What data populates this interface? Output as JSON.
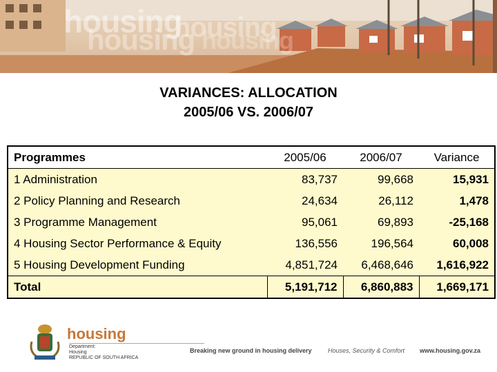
{
  "banner": {
    "words": [
      "housing",
      "housing",
      "housing",
      "housing"
    ]
  },
  "title": {
    "line1": "VARIANCES: ALLOCATION",
    "line2": "2005/06 VS. 2006/07"
  },
  "table": {
    "headers": [
      "Programmes",
      "2005/06",
      "2006/07",
      "Variance"
    ],
    "rows": [
      {
        "programme": "1 Administration",
        "y2005": "83,737",
        "y2006": "99,668",
        "variance": "15,931"
      },
      {
        "programme": "2 Policy Planning and Research",
        "y2005": "24,634",
        "y2006": "26,112",
        "variance": "1,478"
      },
      {
        "programme": "3 Programme Management",
        "y2005": "95,061",
        "y2006": "69,893",
        "variance": "-25,168"
      },
      {
        "programme": "4 Housing Sector Performance & Equity",
        "y2005": "136,556",
        "y2006": "196,564",
        "variance": "60,008"
      },
      {
        "programme": "5 Housing Development Funding",
        "y2005": "4,851,724",
        "y2006": "6,468,646",
        "variance": "1,616,922"
      }
    ],
    "total": {
      "programme": "Total",
      "y2005": "5,191,712",
      "y2006": "6,860,883",
      "variance": "1,669,171"
    }
  },
  "footer": {
    "brand": "housing",
    "department_lines": [
      "Department:",
      "Housing",
      "REPUBLIC OF SOUTH AFRICA"
    ],
    "tagline1": "Breaking new ground in housing delivery",
    "tagline2": "Houses, Security & Comfort",
    "website": "www.housing.gov.za"
  },
  "colors": {
    "table_fill": "#fffacd",
    "brand_orange": "#c87838"
  }
}
